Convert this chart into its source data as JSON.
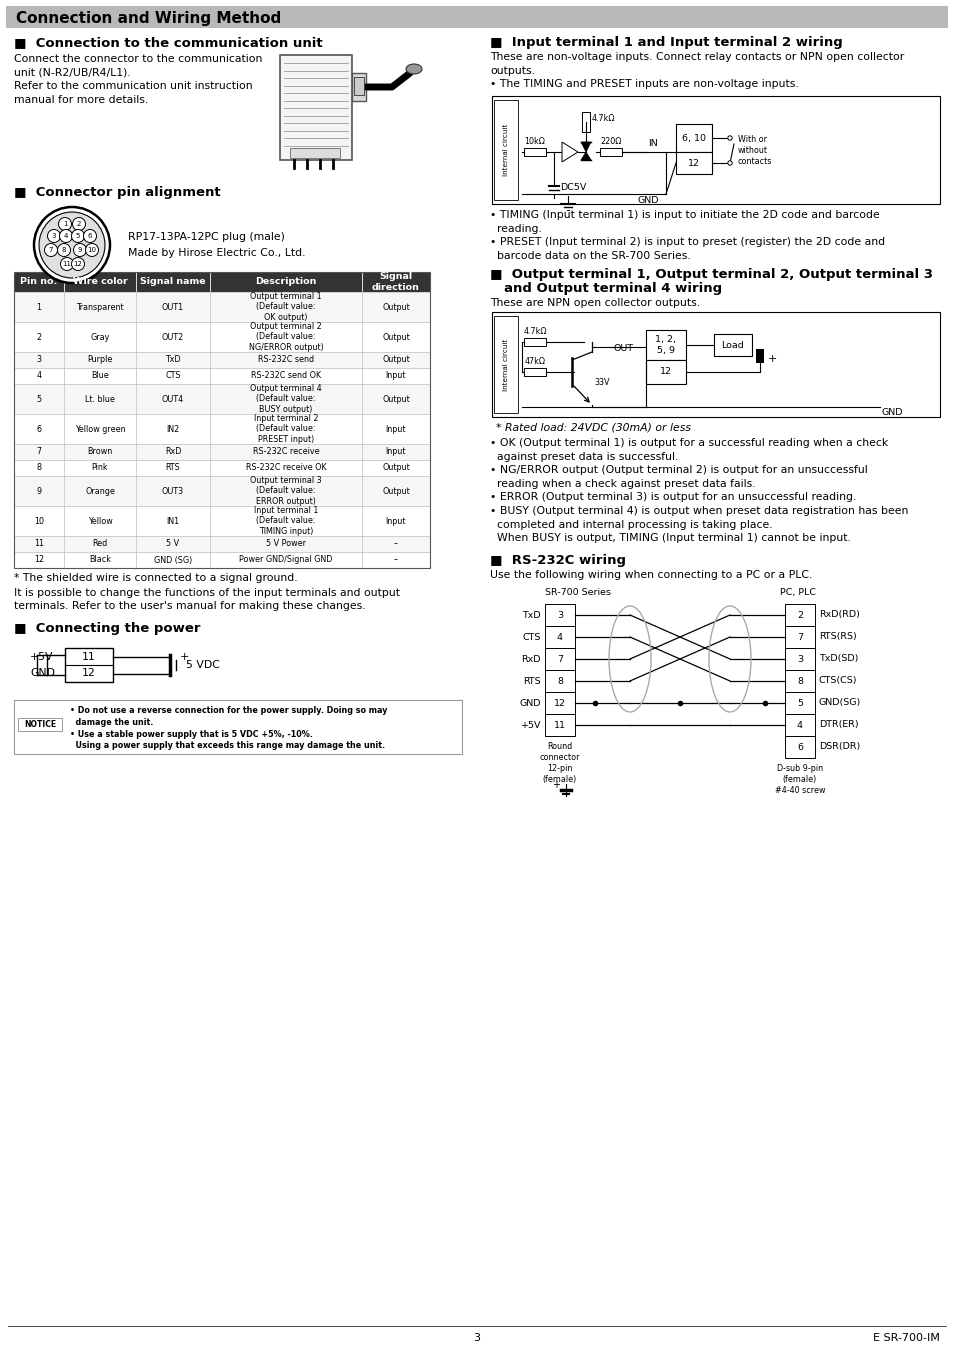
{
  "page_bg": "#ffffff",
  "header_bg": "#aaaaaa",
  "header_text": "Connection and Wiring Method",
  "footer_page": "3",
  "footer_right": "E SR-700-IM",
  "table_headers": [
    "Pin no.",
    "Wire color",
    "Signal name",
    "Description",
    "Signal\ndirection"
  ],
  "table_rows": [
    [
      "1",
      "Transparent",
      "OUT1",
      "Output terminal 1\n(Default value:\nOK output)",
      "Output"
    ],
    [
      "2",
      "Gray",
      "OUT2",
      "Output terminal 2\n(Default value:\nNG/ERROR output)",
      "Output"
    ],
    [
      "3",
      "Purple",
      "TxD",
      "RS-232C send",
      "Output"
    ],
    [
      "4",
      "Blue",
      "CTS",
      "RS-232C send OK",
      "Input"
    ],
    [
      "5",
      "Lt. blue",
      "OUT4",
      "Output terminal 4\n(Default value:\nBUSY output)",
      "Output"
    ],
    [
      "6",
      "Yellow green",
      "IN2",
      "Input terminal 2\n(Default value:\nPRESET input)",
      "Input"
    ],
    [
      "7",
      "Brown",
      "RxD",
      "RS-232C receive",
      "Input"
    ],
    [
      "8",
      "Pink",
      "RTS",
      "RS-232C receive OK",
      "Output"
    ],
    [
      "9",
      "Orange",
      "OUT3",
      "Output terminal 3\n(Default value:\nERROR output)",
      "Output"
    ],
    [
      "10",
      "Yellow",
      "IN1",
      "Input terminal 1\n(Default value:\nTIMING input)",
      "Input"
    ],
    [
      "11",
      "Red",
      "5 V",
      "5 V Power",
      "–"
    ],
    [
      "12",
      "Black",
      "GND (SG)",
      "Power GND/Signal GND",
      "–"
    ]
  ]
}
